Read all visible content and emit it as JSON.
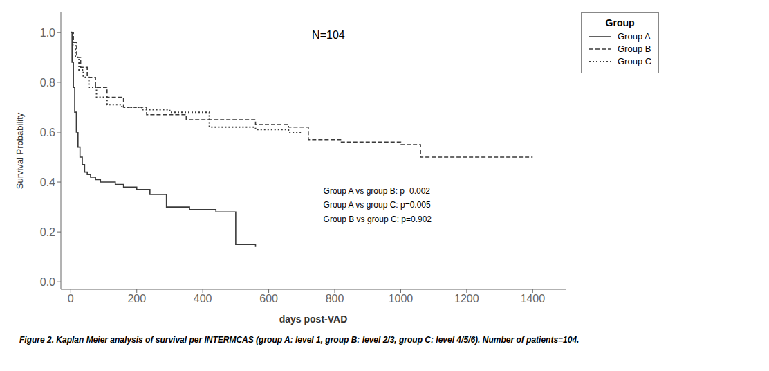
{
  "chart_data": {
    "type": "step",
    "xlabel": "days post-VAD",
    "ylabel": "Survival Probability",
    "annotations": [
      "N=104",
      "Group A vs group B: p=0.002\nGroup A vs group C: p=0.005\nGroup B vs group C: p=0.902"
    ],
    "caption": "Figure 2. Kaplan Meier analysis of survival per INTERMCAS (group A: level 1, group B: level 2/3, group C: level 4/5/6). Number of patients=104.",
    "xlim": [
      -30,
      1500
    ],
    "ylim": [
      -0.03,
      1.08
    ],
    "xticks": [
      0,
      200,
      400,
      600,
      800,
      1000,
      1200,
      1400
    ],
    "yticks": [
      {
        "value": 0.0,
        "label": "0.0"
      },
      0.2,
      0.4,
      0.6,
      0.8,
      {
        "value": 1.0,
        "label": "1.0"
      }
    ],
    "grid": false,
    "legend": "upper right",
    "legend_title": "Group",
    "series": [
      {
        "name": "Group A",
        "color": "#3a3a3a",
        "line_style": "solid",
        "x": [
          0,
          4,
          8,
          12,
          17,
          22,
          28,
          35,
          42,
          50,
          60,
          75,
          90,
          110,
          135,
          160,
          200,
          240,
          290,
          360,
          440,
          500,
          560
        ],
        "values": [
          1.0,
          0.88,
          0.78,
          0.68,
          0.6,
          0.54,
          0.5,
          0.47,
          0.44,
          0.43,
          0.42,
          0.41,
          0.4,
          0.4,
          0.39,
          0.38,
          0.37,
          0.35,
          0.3,
          0.29,
          0.28,
          0.15,
          0.14
        ]
      },
      {
        "name": "Group B",
        "color": "#3a3a3a",
        "line_style": "dashed",
        "x": [
          0,
          8,
          18,
          30,
          50,
          75,
          110,
          160,
          230,
          350,
          440,
          560,
          660,
          720,
          820,
          1000,
          1060,
          1400
        ],
        "values": [
          1.0,
          0.96,
          0.9,
          0.86,
          0.82,
          0.78,
          0.74,
          0.7,
          0.67,
          0.65,
          0.65,
          0.63,
          0.62,
          0.57,
          0.56,
          0.55,
          0.5,
          0.5
        ]
      },
      {
        "name": "Group C",
        "color": "#3a3a3a",
        "line_style": "dotted",
        "x": [
          0,
          6,
          14,
          25,
          38,
          55,
          78,
          110,
          155,
          215,
          300,
          420,
          560,
          660,
          700
        ],
        "values": [
          1.0,
          0.95,
          0.9,
          0.85,
          0.82,
          0.78,
          0.74,
          0.71,
          0.7,
          0.69,
          0.68,
          0.62,
          0.61,
          0.6,
          0.6
        ]
      }
    ]
  }
}
